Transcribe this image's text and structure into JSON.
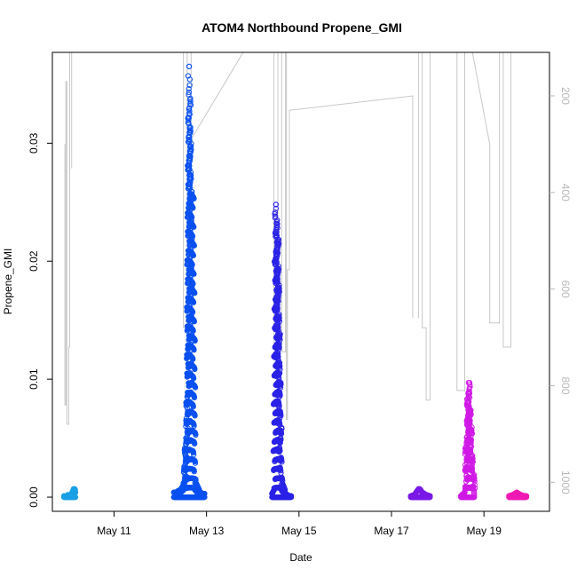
{
  "chart_data": {
    "type": "scatter",
    "title": "ATOM4 Northbound Propene_GMI",
    "xlabel": "Date",
    "ylabel": "Propene_GMI",
    "x_ticks": [
      "May 11",
      "May 13",
      "May 15",
      "May 17",
      "May 19"
    ],
    "y_ticks": [
      "0.00",
      "0.01",
      "0.02",
      "0.03"
    ],
    "y2_ticks": [
      "200",
      "400",
      "600",
      "800",
      "1000"
    ],
    "xlim": [
      "2018-05-09 16:00",
      "2018-05-20 10:00"
    ],
    "ylim": [
      -0.0012,
      0.0377
    ],
    "y2lim": [
      1060,
      110
    ],
    "y2_reversed": true,
    "grid": false,
    "colors": {
      "axis": "#000000",
      "pressure_line": "#c8c8c8",
      "right_axis": "#b8b8b8"
    },
    "series": [
      {
        "color": "#1aa0e6",
        "x_start": "2018-05-09 22:00",
        "x_end": "2018-05-10 04:00",
        "points": [
          [
            "2018-05-09 22:00",
            0.0001
          ],
          [
            "2018-05-09 23:00",
            0.0
          ],
          [
            "2018-05-10 00:00",
            0.0002
          ],
          [
            "2018-05-10 01:00",
            0.0001
          ],
          [
            "2018-05-10 02:00",
            0.0003
          ],
          [
            "2018-05-10 03:00",
            0.0007
          ],
          [
            "2018-05-10 04:00",
            0.0004
          ]
        ]
      },
      {
        "color": "#0a50f0",
        "x_start": "2018-05-12 07:00",
        "x_end": "2018-05-12 23:00",
        "points": [
          [
            "2018-05-12 08:00",
            0.0004
          ],
          [
            "2018-05-12 10:00",
            0.0006
          ],
          [
            "2018-05-12 12:00",
            0.0012
          ],
          [
            "2018-05-12 13:00",
            0.0035
          ],
          [
            "2018-05-12 14:00",
            0.0085
          ],
          [
            "2018-05-12 15:00",
            0.0365
          ],
          [
            "2018-05-12 16:00",
            0.0256
          ],
          [
            "2018-05-12 17:00",
            0.0253
          ],
          [
            "2018-05-12 18:00",
            0.0012
          ],
          [
            "2018-05-12 20:00",
            0.0005
          ],
          [
            "2018-05-12 22:00",
            0.0003
          ]
        ]
      },
      {
        "color": "#2a22e6",
        "x_start": "2018-05-14 10:00",
        "x_end": "2018-05-14 20:00",
        "points": [
          [
            "2018-05-14 10:00",
            0.0003
          ],
          [
            "2018-05-14 11:00",
            0.0006
          ],
          [
            "2018-05-14 12:00",
            0.0248
          ],
          [
            "2018-05-14 13:00",
            0.0215
          ],
          [
            "2018-05-14 14:00",
            0.0105
          ],
          [
            "2018-05-14 15:00",
            0.0011
          ],
          [
            "2018-05-14 17:00",
            0.0003
          ],
          [
            "2018-05-14 19:00",
            0.0001
          ]
        ]
      },
      {
        "color": "#7a1ae6",
        "x_start": "2018-05-17 10:00",
        "x_end": "2018-05-17 20:00",
        "points": [
          [
            "2018-05-17 10:00",
            0.0001
          ],
          [
            "2018-05-17 12:00",
            0.0002
          ],
          [
            "2018-05-17 14:00",
            0.0007
          ],
          [
            "2018-05-17 16:00",
            0.0004
          ],
          [
            "2018-05-17 18:00",
            0.0002
          ],
          [
            "2018-05-17 20:00",
            0.0001
          ]
        ]
      },
      {
        "color": "#d01ae6",
        "x_start": "2018-05-18 12:00",
        "x_end": "2018-05-18 19:00",
        "points": [
          [
            "2018-05-18 12:00",
            0.0001
          ],
          [
            "2018-05-18 14:00",
            0.0004
          ],
          [
            "2018-05-18 16:00",
            0.0097
          ],
          [
            "2018-05-18 16:30",
            0.0088
          ],
          [
            "2018-05-18 17:00",
            0.007
          ],
          [
            "2018-05-18 17:30",
            0.0043
          ],
          [
            "2018-05-18 18:00",
            0.003
          ],
          [
            "2018-05-18 19:00",
            0.0002
          ]
        ]
      },
      {
        "color": "#f01ab4",
        "x_start": "2018-05-19 13:00",
        "x_end": "2018-05-19 22:00",
        "points": [
          [
            "2018-05-19 13:00",
            0.0001
          ],
          [
            "2018-05-19 15:00",
            0.0002
          ],
          [
            "2018-05-19 17:00",
            0.0004
          ],
          [
            "2018-05-19 19:00",
            0.0002
          ],
          [
            "2018-05-19 21:00",
            0.0001
          ],
          [
            "2018-05-19 22:00",
            0.0001
          ]
        ]
      }
    ],
    "pressure_segments": [
      [
        [
          "2018-05-09 22:30",
          300
        ],
        [
          "2018-05-09 22:30",
          840
        ],
        [
          "2018-05-09 23:00",
          840
        ],
        [
          "2018-05-09 23:00",
          170
        ],
        [
          "2018-05-09 23:30",
          170
        ],
        [
          "2018-05-09 23:30",
          880
        ],
        [
          "2018-05-10 00:30",
          880
        ],
        [
          "2018-05-10 00:30",
          720
        ],
        [
          "2018-05-10 01:00",
          720
        ],
        [
          "2018-05-10 01:00",
          100
        ]
      ],
      [
        [
          "2018-05-10 02:00",
          100
        ],
        [
          "2018-05-10 02:00",
          350
        ]
      ],
      [
        [
          "2018-05-12 12:00",
          100
        ],
        [
          "2018-05-12 12:00",
          680
        ],
        [
          "2018-05-12 14:00",
          680
        ],
        [
          "2018-05-12 14:00",
          100
        ]
      ],
      [
        [
          "2018-05-12 16:00",
          100
        ],
        [
          "2018-05-12 16:00",
          290
        ],
        [
          "2018-05-13 19:00",
          60
        ]
      ],
      [
        [
          "2018-05-14 11:00",
          100
        ],
        [
          "2018-05-14 11:00",
          720
        ],
        [
          "2018-05-14 13:00",
          720
        ],
        [
          "2018-05-14 13:00",
          100
        ]
      ],
      [
        [
          "2018-05-14 15:00",
          100
        ],
        [
          "2018-05-14 15:00",
          730
        ],
        [
          "2018-05-14 17:00",
          730
        ],
        [
          "2018-05-14 17:00",
          100
        ],
        [
          "2018-05-14 17:30",
          100
        ],
        [
          "2018-05-14 17:30",
          870
        ],
        [
          "2018-05-14 18:00",
          870
        ],
        [
          "2018-05-14 18:00",
          560
        ],
        [
          "2018-05-14 19:00",
          560
        ],
        [
          "2018-05-14 19:00",
          230
        ],
        [
          "2018-05-17 11:00",
          200
        ],
        [
          "2018-05-17 11:00",
          660
        ]
      ],
      [
        [
          "2018-05-17 14:00",
          660
        ],
        [
          "2018-05-17 14:00",
          100
        ],
        [
          "2018-05-17 16:00",
          100
        ],
        [
          "2018-05-17 16:00",
          680
        ],
        [
          "2018-05-17 18:00",
          680
        ],
        [
          "2018-05-17 18:00",
          830
        ],
        [
          "2018-05-17 20:00",
          830
        ],
        [
          "2018-05-17 20:00",
          100
        ]
      ],
      [
        [
          "2018-05-18 10:00",
          100
        ],
        [
          "2018-05-18 10:00",
          810
        ],
        [
          "2018-05-18 14:00",
          810
        ],
        [
          "2018-05-18 14:00",
          100
        ]
      ],
      [
        [
          "2018-05-18 18:00",
          100
        ],
        [
          "2018-05-19 03:00",
          300
        ],
        [
          "2018-05-19 03:00",
          670
        ],
        [
          "2018-05-19 08:00",
          670
        ],
        [
          "2018-05-19 08:00",
          100
        ]
      ],
      [
        [
          "2018-05-19 10:00",
          100
        ],
        [
          "2018-05-19 10:00",
          720
        ],
        [
          "2018-05-19 14:00",
          720
        ],
        [
          "2018-05-19 14:00",
          100
        ]
      ]
    ]
  }
}
